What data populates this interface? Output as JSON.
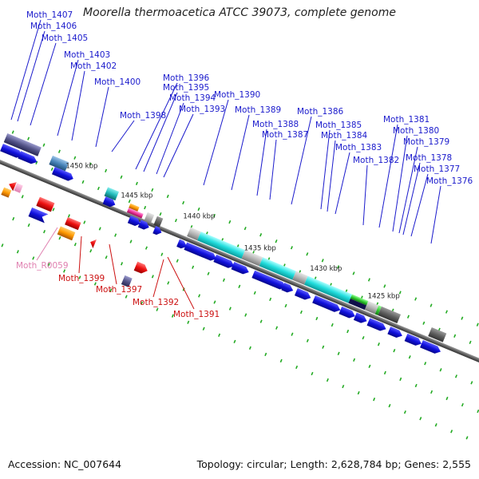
{
  "title": "Moorella thermoacetica ATCC 39073, complete genome",
  "footer": {
    "accession": "Accession: NC_007644",
    "summary": "Topology: circular; Length: 2,628,784 bp; Genes: 2,555"
  },
  "colors": {
    "label_blue": "#1a1acc",
    "label_red": "#cc1111",
    "label_pink": "#e080b0",
    "backbone": "#808080",
    "tick": "#22aa22",
    "cds_blue": "#1010dd"
  },
  "kbp_markers": [
    "1450 kbp",
    "1445 kbp",
    "1440 kbp",
    "1435 kbp",
    "1430 kbp",
    "1425 kbp"
  ],
  "labels_top": [
    "Moth_1407",
    "Moth_1406",
    "Moth_1405",
    "Moth_1403",
    "Moth_1402",
    "Moth_1400",
    "Moth_1398",
    "Moth_1396",
    "Moth_1395",
    "Moth_1394",
    "Moth_1393",
    "Moth_1390",
    "Moth_1389",
    "Moth_1388",
    "Moth_1387",
    "Moth_1386",
    "Moth_1385",
    "Moth_1384",
    "Moth_1383",
    "Moth_1382",
    "Moth_1381",
    "Moth_1380",
    "Moth_1379",
    "Moth_1378",
    "Moth_1377",
    "Moth_1376"
  ],
  "labels_bottom": [
    "Moth_R0059",
    "Moth_1399",
    "Moth_1397",
    "Moth_1392",
    "Moth_1391"
  ]
}
